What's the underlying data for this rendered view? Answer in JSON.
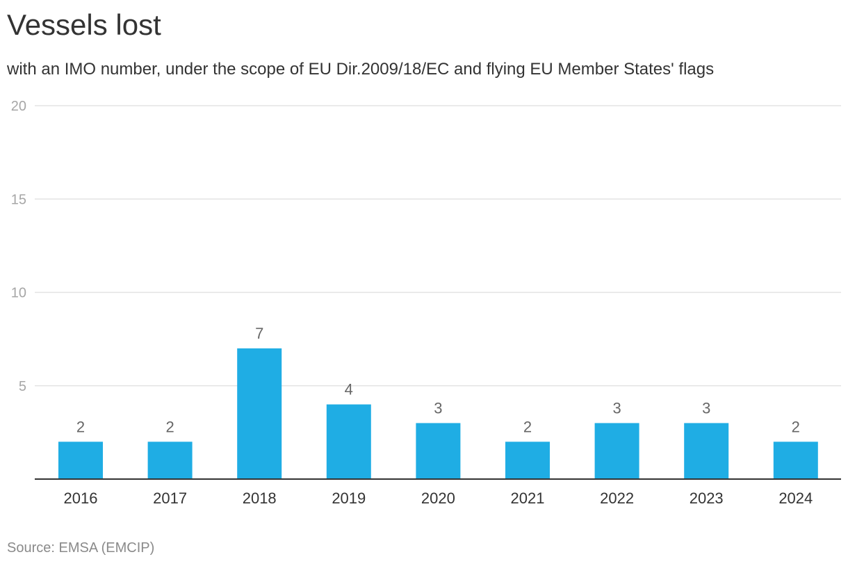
{
  "chart_data": {
    "type": "bar",
    "title": "Vessels lost",
    "subtitle": "with an IMO number, under the scope of EU Dir.2009/18/EC and flying EU Member States' flags",
    "categories": [
      "2016",
      "2017",
      "2018",
      "2019",
      "2020",
      "2021",
      "2022",
      "2023",
      "2024"
    ],
    "values": [
      2,
      2,
      7,
      4,
      3,
      2,
      3,
      3,
      2
    ],
    "xlabel": "",
    "ylabel": "",
    "ylim": [
      0,
      20
    ],
    "yticks": [
      5,
      10,
      15,
      20
    ],
    "grid": true,
    "bar_color": "#1fade4",
    "source": "Source: EMSA (EMCIP)"
  }
}
